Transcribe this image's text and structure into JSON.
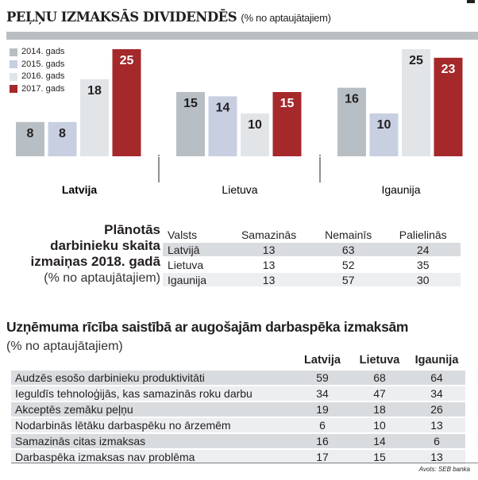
{
  "chart_data": {
    "type": "bar",
    "title": "PEĻŅU IZMAKSĀS DIVIDENDĒS",
    "subtitle": "(% no aptaujātajiem)",
    "categories": [
      "Latvija",
      "Lietuva",
      "Igaunija"
    ],
    "series": [
      {
        "name": "2014. gads",
        "color": "#b8bfc4",
        "values": [
          8,
          15,
          16
        ]
      },
      {
        "name": "2015. gads",
        "color": "#c7cfe1",
        "values": [
          8,
          14,
          10
        ]
      },
      {
        "name": "2016. gads",
        "color": "#e2e5e8",
        "values": [
          18,
          10,
          25
        ]
      },
      {
        "name": "2017. gads",
        "color": "#a5282b",
        "values": [
          25,
          15,
          23
        ]
      }
    ],
    "ylim": [
      0,
      25
    ],
    "legend": "top-left"
  },
  "table2": {
    "title_lines": [
      "Plānotās",
      "darbinieku skaita",
      "izmaiņas 2018. gadā"
    ],
    "subtitle": "(% no aptaujātajiem)",
    "headers": [
      "Valsts",
      "Samazinās",
      "Nemainīs",
      "Palielinās"
    ],
    "rows": [
      [
        "Latvijā",
        "13",
        "63",
        "24"
      ],
      [
        "Lietuva",
        "13",
        "52",
        "35"
      ],
      [
        "Igaunija",
        "13",
        "57",
        "30"
      ]
    ]
  },
  "table3": {
    "title": "Uzņēmuma rīcība saistībā ar augošajām darbaspēka izmaksām",
    "subtitle": "(% no aptaujātajiem)",
    "headers": [
      "",
      "Latvija",
      "Lietuva",
      "Igaunija"
    ],
    "rows": [
      [
        "Audzēs esošo darbinieku produktivitāti",
        "59",
        "68",
        "64"
      ],
      [
        "Ieguldīs tehnoloģijās, kas samazinās roku darbu",
        "34",
        "47",
        "34"
      ],
      [
        "Akceptēs zemāku peļņu",
        "19",
        "18",
        "26"
      ],
      [
        "Nodarbinās lētāku darbaspēku no ārzemēm",
        "6",
        "10",
        "13"
      ],
      [
        "Samazinās citas izmaksas",
        "16",
        "14",
        "6"
      ],
      [
        "Darbaspēka izmaksas nav problēma",
        "17",
        "15",
        "13"
      ]
    ]
  },
  "source": "Avots: SEB banka"
}
